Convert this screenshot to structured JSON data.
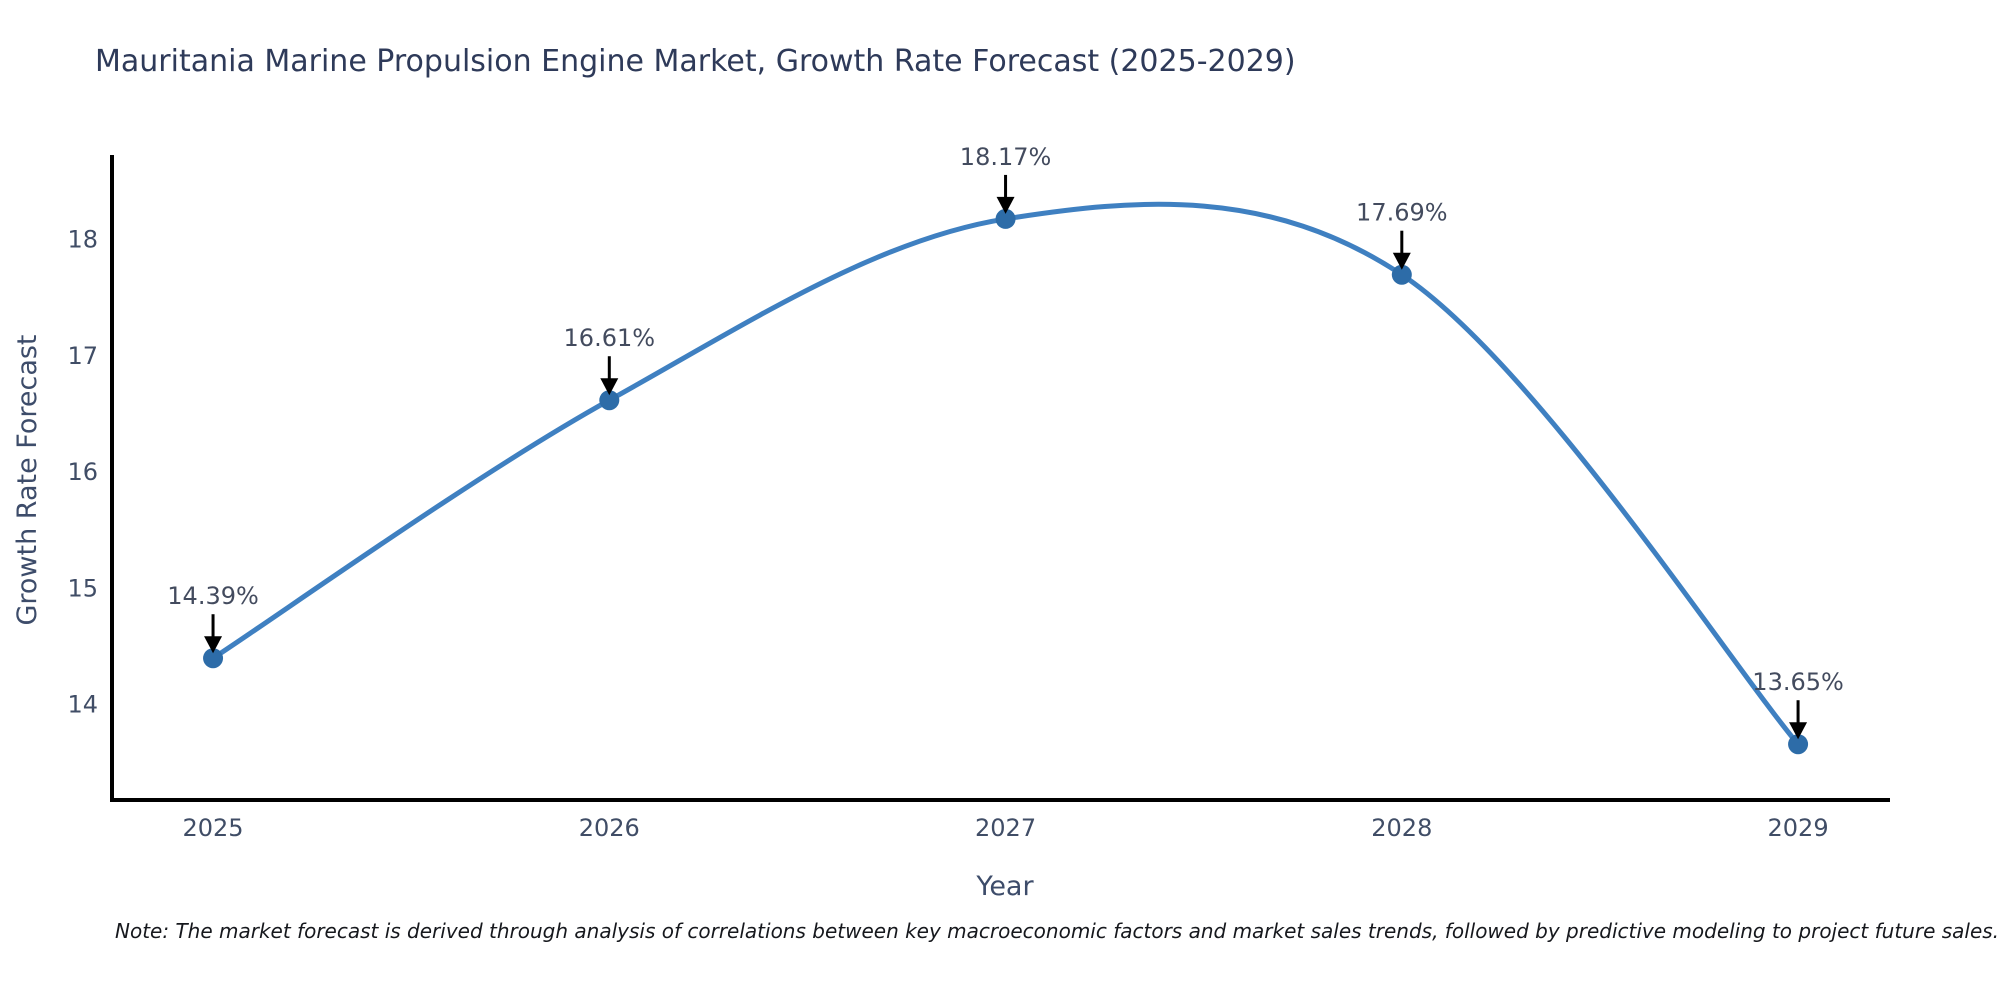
{
  "title": "Mauritania Marine Propulsion Engine Market, Growth Rate Forecast (2025-2029)",
  "note": "Note: The market forecast is derived through analysis of correlations between key macroeconomic factors and market sales trends, followed by predictive modeling to project future sales.",
  "chart_data": {
    "type": "line",
    "line_shape": "spline",
    "title": "Mauritania Marine Propulsion Engine Market, Growth Rate Forecast (2025-2029)",
    "xlabel": "Year",
    "ylabel": "Growth Rate Forecast",
    "x": [
      2025,
      2026,
      2027,
      2028,
      2029
    ],
    "categories": [
      "2025",
      "2026",
      "2027",
      "2028",
      "2029"
    ],
    "values": [
      14.39,
      16.61,
      18.17,
      17.69,
      13.65
    ],
    "point_labels": [
      "14.39%",
      "16.61%",
      "18.17%",
      "17.69%",
      "13.65%"
    ],
    "xlim": [
      2024.745,
      2029.232
    ],
    "ylim": [
      13.17,
      18.72
    ],
    "yticks": [
      14,
      15,
      16,
      17,
      18
    ],
    "grid": false,
    "legend": "none",
    "colors": {
      "line": "#3f80c1",
      "marker": "#2d6ca8",
      "axis": "#000000",
      "annotation_text": "#434b5e",
      "annotation_arrow": "#000000",
      "title_text": "#2e3a59",
      "tick_text": "#404d66",
      "axis_title_text": "#3d4c6a"
    }
  }
}
